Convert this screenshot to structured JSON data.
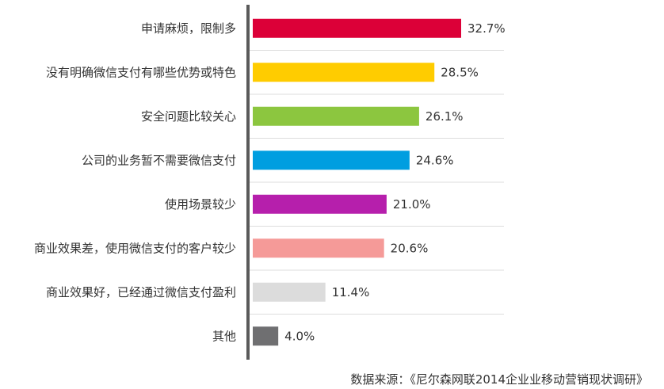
{
  "chart_data": {
    "type": "bar",
    "orientation": "horizontal",
    "categories": [
      "申请麻烦，限制多",
      "没有明确微信支付有哪些优势或特色",
      "安全问题比较关心",
      "公司的业务暂不需要微信支付",
      "使用场景较少",
      "商业效果差，使用微信支付的客户较少",
      "商业效果好，已经通过微信支付盈利",
      "其他"
    ],
    "values": [
      32.7,
      28.5,
      26.1,
      24.6,
      21.0,
      20.6,
      11.4,
      4.0
    ],
    "value_labels": [
      "32.7%",
      "28.5%",
      "26.1%",
      "24.6%",
      "21.0%",
      "20.6%",
      "11.4%",
      "4.0%"
    ],
    "colors": [
      "#dc0038",
      "#ffcc00",
      "#8cc63f",
      "#009ee0",
      "#b61fac",
      "#f59a98",
      "#dcdcdc",
      "#6f6f71"
    ],
    "xlim": [
      0,
      40
    ],
    "grid": "horizontal-separators",
    "source": "数据来源：《尼尔森网联2014企业业移动营销现状调研》"
  }
}
